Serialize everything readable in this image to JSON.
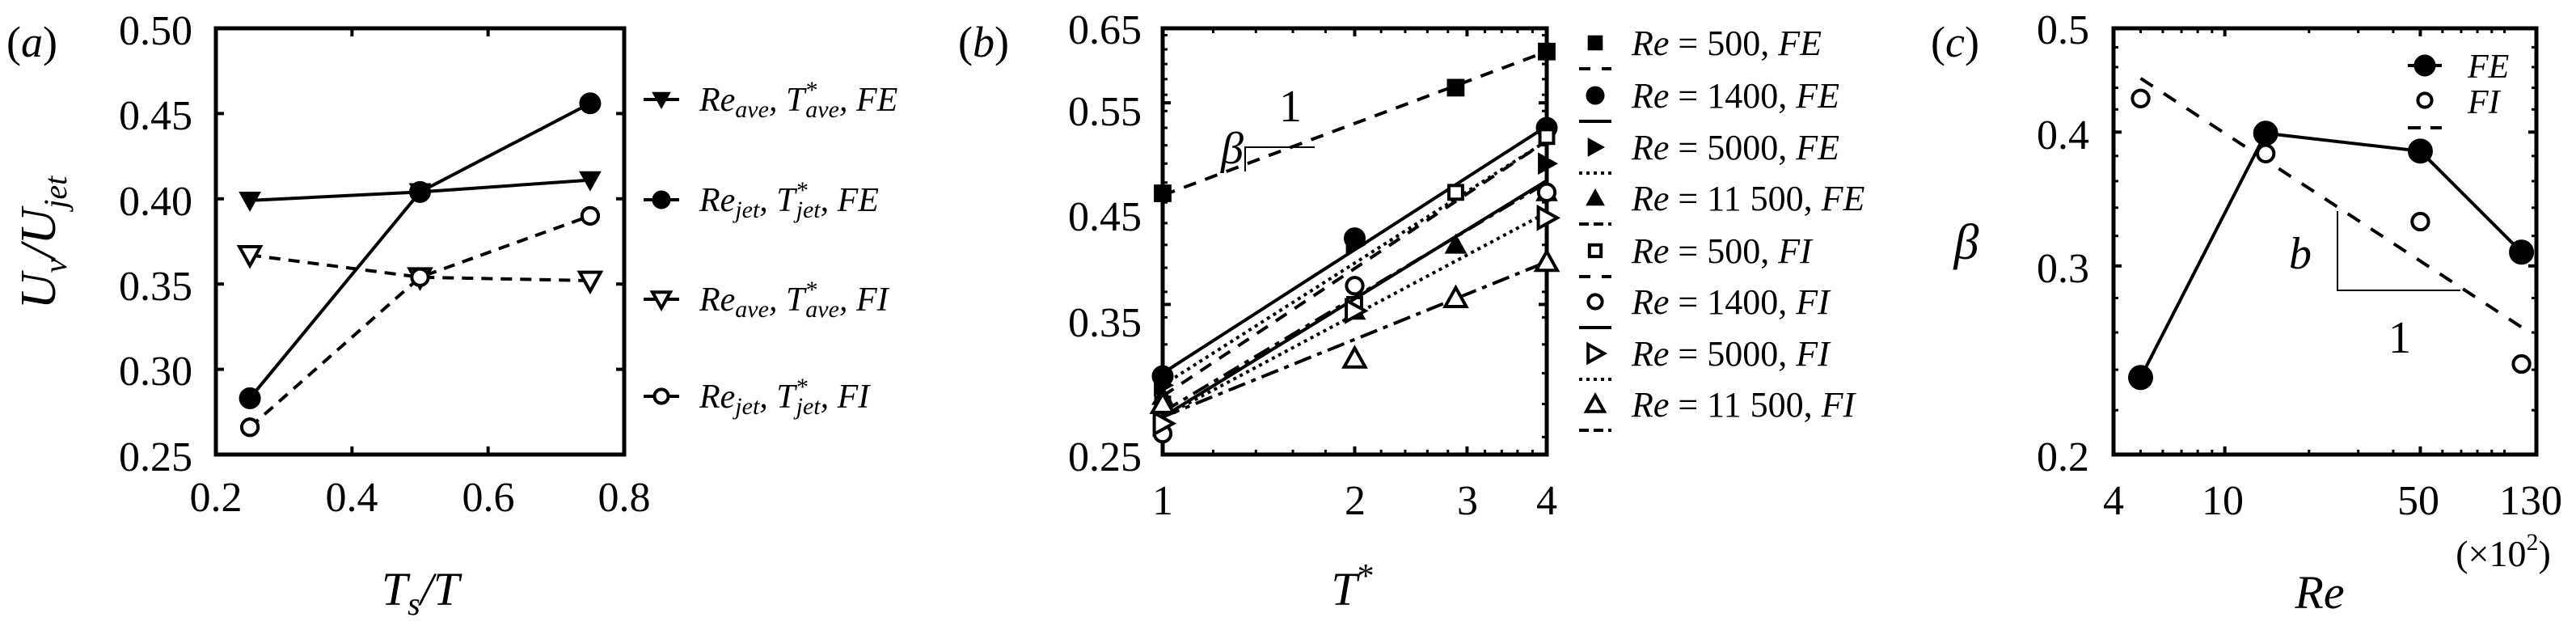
{
  "figure": {
    "background": "#ffffff",
    "ink": "#000000"
  },
  "panels": {
    "a": {
      "label": "(a)",
      "ylabel": "U_v/U_jet",
      "ylabel_main": "U",
      "ylabel_sub1": "v",
      "ylabel_sep": "/U",
      "ylabel_sub2": "jet",
      "xlabel_main": "T",
      "xlabel_sub": "s",
      "xlabel_tail": "/T",
      "xlabel": "T_s/T",
      "yticks": [
        "0.50",
        "0.45",
        "0.40",
        "0.35",
        "0.30",
        "0.25"
      ],
      "xticks": [
        "0.2",
        "0.4",
        "0.6",
        "0.8"
      ],
      "legend": [
        {
          "re": "Re",
          "re_sub": "ave",
          "t": "T",
          "t_sup": "*",
          "t_sub": "ave",
          "cond": "FE"
        },
        {
          "re": "Re",
          "re_sub": "jet",
          "t": "T",
          "t_sup": "*",
          "t_sub": "jet",
          "cond": "FE"
        },
        {
          "re": "Re",
          "re_sub": "ave",
          "t": "T",
          "t_sup": "*",
          "t_sub": "ave",
          "cond": "FI"
        },
        {
          "re": "Re",
          "re_sub": "jet",
          "t": "T",
          "t_sup": "*",
          "t_sub": "jet",
          "cond": "FI"
        }
      ]
    },
    "b": {
      "label": "(b)",
      "xlabel": "T*",
      "xlabel_main": "T",
      "xlabel_sup": "*",
      "yticks": [
        "0.65",
        "0.55",
        "0.45",
        "0.35",
        "0.25"
      ],
      "xticks": [
        "1",
        "2",
        "3",
        "4"
      ],
      "slope_beta": "β",
      "slope_one": "1",
      "legend": [
        {
          "re": "Re",
          "eq": " = 500, ",
          "cond": "FE"
        },
        {
          "re": "Re",
          "eq": " = 1400, ",
          "cond": "FE"
        },
        {
          "re": "Re",
          "eq": " = 5000, ",
          "cond": "FE"
        },
        {
          "re": "Re",
          "eq": " = 11 500, ",
          "cond": "FE"
        },
        {
          "re": "Re",
          "eq": " = 500, ",
          "cond": "FI"
        },
        {
          "re": "Re",
          "eq": " = 1400, ",
          "cond": "FI"
        },
        {
          "re": "Re",
          "eq": " = 5000, ",
          "cond": "FI"
        },
        {
          "re": "Re",
          "eq": " = 11 500, ",
          "cond": "FI"
        }
      ]
    },
    "c": {
      "label": "(c)",
      "ylabel": "β",
      "xlabel": "Re",
      "xunit": "(×10",
      "xunit_sup": "2",
      "xunit_close": ")",
      "yticks": [
        "0.5",
        "0.4",
        "0.3",
        "0.2"
      ],
      "xticks": [
        "4",
        "10",
        "50",
        "130"
      ],
      "slope_b": "b",
      "slope_one": "1",
      "legend": [
        {
          "cond": "FE"
        },
        {
          "cond": "FI"
        }
      ]
    }
  },
  "chart_data": [
    {
      "type": "line",
      "panel": "a",
      "title": "",
      "xlabel": "T_s/T",
      "ylabel": "U_v/U_jet",
      "xlim": [
        0.2,
        0.8
      ],
      "ylim": [
        0.25,
        0.5
      ],
      "xticks": [
        0.2,
        0.4,
        0.6,
        0.8
      ],
      "yticks": [
        0.25,
        0.3,
        0.35,
        0.4,
        0.45,
        0.5
      ],
      "grid": false,
      "legend_position": "outside-right",
      "x": [
        0.25,
        0.5,
        0.75
      ],
      "series": [
        {
          "name": "Re_ave, T*_ave, FE",
          "marker": "triangle-down-filled",
          "line": "solid",
          "values": [
            0.399,
            0.404,
            0.411
          ]
        },
        {
          "name": "Re_jet, T*_jet, FE",
          "marker": "circle-filled",
          "line": "solid",
          "values": [
            0.283,
            0.404,
            0.456
          ]
        },
        {
          "name": "Re_ave, T*_ave, FI",
          "marker": "triangle-down-open",
          "line": "dashed",
          "values": [
            0.367,
            0.354,
            0.352
          ]
        },
        {
          "name": "Re_jet, T*_jet, FI",
          "marker": "circle-open",
          "line": "dashed",
          "values": [
            0.266,
            0.354,
            0.39
          ]
        }
      ]
    },
    {
      "type": "line",
      "panel": "b",
      "title": "",
      "xlabel": "T*",
      "ylabel": "",
      "xscale": "log",
      "yscale": "log",
      "xlim": [
        1,
        4
      ],
      "ylim": [
        0.25,
        0.65
      ],
      "xticks": [
        1,
        2,
        3,
        4
      ],
      "yticks": [
        0.25,
        0.35,
        0.45,
        0.55,
        0.65
      ],
      "grid": false,
      "legend_position": "outside-right",
      "annotation": "slope triangle: β over 1",
      "series": [
        {
          "name": "Re = 500, FE",
          "marker": "square-filled",
          "line": "dash-gap",
          "x": [
            1,
            2.88,
            4
          ],
          "values": [
            0.449,
            0.569,
            0.617
          ],
          "fit": [
            [
              1,
              0.447
            ],
            [
              4,
              0.617
            ]
          ]
        },
        {
          "name": "Re = 1400, FE",
          "marker": "circle-filled",
          "line": "solid",
          "x": [
            1,
            2,
            4
          ],
          "values": [
            0.298,
            0.406,
            0.52
          ],
          "fit": [
            [
              1,
              0.3
            ],
            [
              4,
              0.522
            ]
          ]
        },
        {
          "name": "Re = 5000, FE",
          "marker": "triangle-right-filled",
          "line": "dotted",
          "x": [
            1,
            2,
            4
          ],
          "values": [
            0.292,
            0.4,
            0.48
          ],
          "fit": [
            [
              1,
              0.292
            ],
            [
              4,
              0.505
            ]
          ]
        },
        {
          "name": "Re = 11 500, FE",
          "marker": "triangle-up-filled",
          "line": "long-dash-dot",
          "x": [
            1,
            2,
            2.88,
            4
          ],
          "values": [
            0.285,
            0.345,
            0.4,
            0.45
          ],
          "fit": [
            [
              1,
              0.275
            ],
            [
              4,
              0.46
            ]
          ]
        },
        {
          "name": "Re = 500, FI",
          "marker": "square-open",
          "line": "dash-gap",
          "x": [
            1,
            2,
            2.88,
            4
          ],
          "values": [
            0.28,
            0.35,
            0.45,
            0.51
          ],
          "fit": [
            [
              1,
              0.285
            ],
            [
              4,
              0.505
            ]
          ]
        },
        {
          "name": "Re = 1400, FI",
          "marker": "circle-open",
          "line": "solid",
          "x": [
            1,
            2,
            4
          ],
          "values": [
            0.262,
            0.365,
            0.45
          ],
          "fit": [
            [
              1,
              0.272
            ],
            [
              4,
              0.462
            ]
          ]
        },
        {
          "name": "Re = 5000, FI",
          "marker": "triangle-right-open",
          "line": "dotted",
          "x": [
            1,
            2,
            4
          ],
          "values": [
            0.268,
            0.345,
            0.425
          ],
          "fit": [
            [
              1,
              0.272
            ],
            [
              4,
              0.43
            ]
          ]
        },
        {
          "name": "Re = 11 500, FI",
          "marker": "triangle-up-open",
          "line": "long-dash-dot",
          "x": [
            1,
            2,
            2.88,
            4
          ],
          "values": [
            0.28,
            0.31,
            0.355,
            0.385
          ],
          "fit": [
            [
              1,
              0.272
            ],
            [
              4,
              0.385
            ]
          ]
        }
      ]
    },
    {
      "type": "line",
      "panel": "c",
      "title": "",
      "xlabel": "Re (×10^2)",
      "ylabel": "β",
      "xscale": "log",
      "yscale": "log",
      "xlim": [
        4,
        130
      ],
      "ylim": [
        0.2,
        0.5
      ],
      "xticks": [
        4,
        10,
        50,
        130
      ],
      "yticks": [
        0.2,
        0.3,
        0.4,
        0.5
      ],
      "grid": false,
      "legend_position": "upper-right",
      "annotation": "slope triangle: b over 1",
      "x": [
        5,
        14,
        50,
        115
      ],
      "series": [
        {
          "name": "FE",
          "marker": "circle-filled",
          "line": "solid",
          "values": [
            0.236,
            0.399,
            0.384,
            0.309
          ]
        },
        {
          "name": "FI",
          "marker": "circle-open",
          "line": "none",
          "values": [
            0.43,
            0.382,
            0.33,
            0.243
          ],
          "fit": [
            [
              5,
              0.449
            ],
            [
              115,
              0.263
            ]
          ]
        }
      ]
    }
  ]
}
